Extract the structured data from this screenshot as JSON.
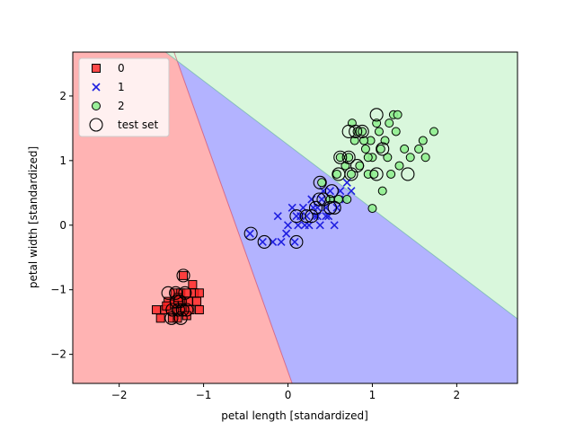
{
  "chart_data": {
    "type": "scatter",
    "title": "",
    "xlabel": "petal length [standardized]",
    "ylabel": "petal width [standardized]",
    "xlim": [
      -2.55,
      2.72
    ],
    "ylim": [
      -2.45,
      2.68
    ],
    "xticks": [
      -2,
      -1,
      0,
      1,
      2
    ],
    "yticks": [
      -2,
      -1,
      0,
      1,
      2
    ],
    "grid": false,
    "legend_position": "top-left",
    "decision_regions": [
      {
        "class": "0",
        "color": "#ffb3b3"
      },
      {
        "class": "1",
        "color": "#b3b3ff"
      },
      {
        "class": "2",
        "color": "#d9f7dc"
      }
    ],
    "decision_boundaries": [
      {
        "between": [
          "0",
          "1"
        ],
        "points": [
          [
            -1.35,
            2.68
          ],
          [
            0.05,
            -2.45
          ]
        ]
      },
      {
        "between": [
          "1",
          "2"
        ],
        "points": [
          [
            -1.45,
            2.68
          ],
          [
            2.72,
            -1.45
          ]
        ]
      }
    ],
    "series": [
      {
        "name": "0",
        "marker": "square",
        "color": "#ff2020",
        "points": [
          [
            -1.56,
            -1.31
          ],
          [
            -1.51,
            -1.44
          ],
          [
            -1.46,
            -1.31
          ],
          [
            -1.42,
            -1.18
          ],
          [
            -1.39,
            -1.31
          ],
          [
            -1.37,
            -1.44
          ],
          [
            -1.34,
            -1.18
          ],
          [
            -1.34,
            -1.05
          ],
          [
            -1.31,
            -1.31
          ],
          [
            -1.31,
            -1.44
          ],
          [
            -1.29,
            -1.18
          ],
          [
            -1.27,
            -1.05
          ],
          [
            -1.27,
            -1.31
          ],
          [
            -1.25,
            -1.18
          ],
          [
            -1.24,
            -0.78
          ],
          [
            -1.22,
            -1.31
          ],
          [
            -1.2,
            -1.05
          ],
          [
            -1.18,
            -1.18
          ],
          [
            -1.16,
            -1.31
          ],
          [
            -1.13,
            -0.92
          ],
          [
            -1.11,
            -1.05
          ],
          [
            -1.08,
            -1.18
          ],
          [
            -1.05,
            -1.05
          ],
          [
            -1.05,
            -1.31
          ],
          [
            -1.35,
            -1.22
          ],
          [
            -1.3,
            -1.12
          ],
          [
            -1.2,
            -1.4
          ],
          [
            -1.44,
            -1.25
          ]
        ]
      },
      {
        "name": "1",
        "marker": "x",
        "color": "#2020e0",
        "points": [
          [
            -0.45,
            -0.13
          ],
          [
            -0.3,
            -0.26
          ],
          [
            -0.18,
            -0.26
          ],
          [
            -0.12,
            0.14
          ],
          [
            -0.08,
            -0.26
          ],
          [
            -0.02,
            -0.13
          ],
          [
            0.05,
            0.27
          ],
          [
            0.08,
            -0.26
          ],
          [
            0.12,
            0.0
          ],
          [
            0.15,
            0.14
          ],
          [
            0.18,
            0.27
          ],
          [
            0.22,
            0.14
          ],
          [
            0.25,
            0.0
          ],
          [
            0.28,
            0.4
          ],
          [
            0.32,
            0.14
          ],
          [
            0.35,
            0.27
          ],
          [
            0.38,
            0.0
          ],
          [
            0.4,
            0.4
          ],
          [
            0.42,
            0.53
          ],
          [
            0.45,
            0.27
          ],
          [
            0.48,
            0.14
          ],
          [
            0.52,
            0.4
          ],
          [
            0.55,
            0.0
          ],
          [
            0.58,
            0.27
          ],
          [
            0.62,
            0.53
          ],
          [
            0.68,
            0.4
          ],
          [
            0.7,
            0.66
          ],
          [
            0.75,
            0.53
          ],
          [
            0.3,
            0.27
          ],
          [
            0.1,
            0.14
          ],
          [
            0.0,
            0.0
          ],
          [
            0.45,
            0.14
          ],
          [
            0.5,
            0.53
          ],
          [
            0.65,
            0.4
          ],
          [
            0.35,
            0.14
          ],
          [
            0.2,
            0.0
          ]
        ]
      },
      {
        "name": "2",
        "marker": "circle",
        "color": "#90ee90",
        "points": [
          [
            0.4,
            0.66
          ],
          [
            0.5,
            0.4
          ],
          [
            0.58,
            0.79
          ],
          [
            0.62,
            1.05
          ],
          [
            0.68,
            0.92
          ],
          [
            0.72,
            1.05
          ],
          [
            0.75,
            0.79
          ],
          [
            0.76,
            1.58
          ],
          [
            0.79,
            1.31
          ],
          [
            0.82,
            1.45
          ],
          [
            0.85,
            0.92
          ],
          [
            0.88,
            1.45
          ],
          [
            0.92,
            1.18
          ],
          [
            0.95,
            0.79
          ],
          [
            0.98,
            1.31
          ],
          [
            1.0,
            1.05
          ],
          [
            1.02,
            0.79
          ],
          [
            1.05,
            1.58
          ],
          [
            1.08,
            1.45
          ],
          [
            1.1,
            1.18
          ],
          [
            1.12,
            0.53
          ],
          [
            1.15,
            1.31
          ],
          [
            1.18,
            1.05
          ],
          [
            1.22,
            0.79
          ],
          [
            1.25,
            1.71
          ],
          [
            1.28,
            1.45
          ],
          [
            1.3,
            1.71
          ],
          [
            1.32,
            0.92
          ],
          [
            1.38,
            1.18
          ],
          [
            1.45,
            1.05
          ],
          [
            1.55,
            1.18
          ],
          [
            1.6,
            1.31
          ],
          [
            1.63,
            1.05
          ],
          [
            1.73,
            1.45
          ],
          [
            1.0,
            0.26
          ],
          [
            0.6,
            0.4
          ],
          [
            0.7,
            0.4
          ],
          [
            1.2,
            1.58
          ],
          [
            0.95,
            1.05
          ],
          [
            0.9,
            1.31
          ]
        ]
      },
      {
        "name": "test set",
        "marker": "open-circle",
        "color": "#000000",
        "points": [
          [
            -1.24,
            -0.78
          ],
          [
            -1.37,
            -1.31
          ],
          [
            -1.28,
            -1.18
          ],
          [
            -1.33,
            -1.05
          ],
          [
            -1.22,
            -1.05
          ],
          [
            -1.27,
            -1.44
          ],
          [
            -1.3,
            -1.31
          ],
          [
            -1.25,
            -1.31
          ],
          [
            -1.38,
            -1.44
          ],
          [
            -1.42,
            -1.05
          ],
          [
            -1.2,
            -1.31
          ],
          [
            -1.32,
            -1.18
          ],
          [
            -0.44,
            -0.13
          ],
          [
            -0.28,
            -0.26
          ],
          [
            0.1,
            -0.26
          ],
          [
            0.1,
            0.14
          ],
          [
            0.22,
            0.14
          ],
          [
            0.28,
            0.14
          ],
          [
            0.33,
            0.27
          ],
          [
            0.37,
            0.4
          ],
          [
            0.42,
            0.4
          ],
          [
            0.5,
            0.27
          ],
          [
            0.52,
            0.53
          ],
          [
            0.55,
            0.27
          ],
          [
            0.38,
            0.66
          ],
          [
            0.6,
            0.79
          ],
          [
            0.62,
            1.05
          ],
          [
            0.72,
            1.05
          ],
          [
            0.75,
            0.79
          ],
          [
            0.72,
            1.45
          ],
          [
            0.82,
            0.92
          ],
          [
            0.88,
            1.45
          ],
          [
            1.05,
            0.79
          ],
          [
            1.05,
            1.71
          ],
          [
            1.12,
            1.18
          ],
          [
            1.42,
            0.79
          ],
          [
            0.8,
            1.45
          ]
        ]
      }
    ]
  }
}
